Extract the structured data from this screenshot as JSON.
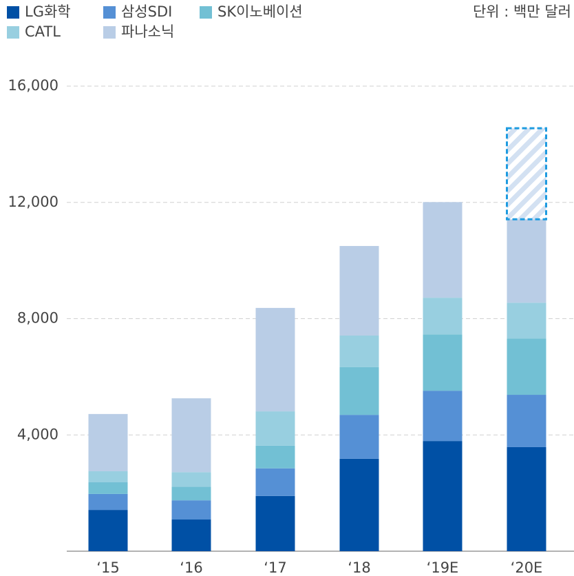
{
  "chart_data": {
    "type": "stacked_bar",
    "unit": "단위 : 백만 달러",
    "categories": [
      "‘15",
      "‘16",
      "‘17",
      "‘18",
      "‘19E",
      "‘20E"
    ],
    "series": [
      {
        "name": "LG화학",
        "color": "#0050a5",
        "values": [
          1420,
          1090,
          1900,
          3180,
          3790,
          3580
        ]
      },
      {
        "name": "삼성SDI",
        "color": "#5590d5",
        "values": [
          550,
          660,
          950,
          1510,
          1730,
          1800
        ]
      },
      {
        "name": "SK이노베이션",
        "color": "#72c0d4",
        "values": [
          400,
          470,
          780,
          1640,
          1940,
          1940
        ]
      },
      {
        "name": "CATL",
        "color": "#98cfe0",
        "values": [
          380,
          500,
          1180,
          1090,
          1260,
          1230
        ]
      },
      {
        "name": "파나소닉",
        "color": "#b9cde6",
        "values": [
          1970,
          2540,
          3560,
          3080,
          3290,
          2870
        ]
      },
      {
        "color": "#1e9be0",
        "hatched": true,
        "values": [
          null,
          null,
          null,
          null,
          null,
          3130
        ]
      }
    ],
    "ylim": [
      0,
      16000
    ],
    "yticks": [
      {
        "value": 4000,
        "label": "4,000"
      },
      {
        "value": 8000,
        "label": "8,000"
      },
      {
        "value": 12000,
        "label": "12,000"
      },
      {
        "value": 16000,
        "label": "16,000"
      }
    ],
    "grid": true
  }
}
